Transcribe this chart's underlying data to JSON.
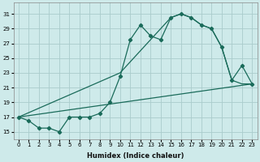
{
  "xlabel": "Humidex (Indice chaleur)",
  "bg_color": "#ceeaea",
  "grid_color": "#aacccc",
  "line_color": "#1a6b5a",
  "xlim": [
    -0.5,
    23.5
  ],
  "ylim": [
    14,
    32.5
  ],
  "yticks": [
    15,
    17,
    19,
    21,
    23,
    25,
    27,
    29,
    31
  ],
  "xticks": [
    0,
    1,
    2,
    3,
    4,
    5,
    6,
    7,
    8,
    9,
    10,
    11,
    12,
    13,
    14,
    15,
    16,
    17,
    18,
    19,
    20,
    21,
    22,
    23
  ],
  "line1_x": [
    0,
    1,
    2,
    3,
    4,
    5,
    6,
    7,
    8,
    9,
    10,
    11,
    12,
    13,
    14,
    15,
    16,
    17,
    18,
    19,
    20,
    21,
    22,
    23
  ],
  "line1_y": [
    17,
    16.5,
    15.5,
    15.5,
    15,
    17,
    17,
    17,
    17.5,
    19,
    22.5,
    27.5,
    29.5,
    28,
    27.5,
    30.5,
    31,
    30.5,
    29.5,
    29,
    26.5,
    22,
    24,
    21.5
  ],
  "line2_x": [
    0,
    10,
    15,
    16,
    17,
    18,
    19,
    20,
    21,
    22,
    23
  ],
  "line2_y": [
    17,
    23,
    30.5,
    31,
    30.5,
    29.5,
    29,
    26.5,
    22,
    21.5,
    21.5
  ],
  "line3_x": [
    0,
    23
  ],
  "line3_y": [
    17,
    21.5
  ]
}
